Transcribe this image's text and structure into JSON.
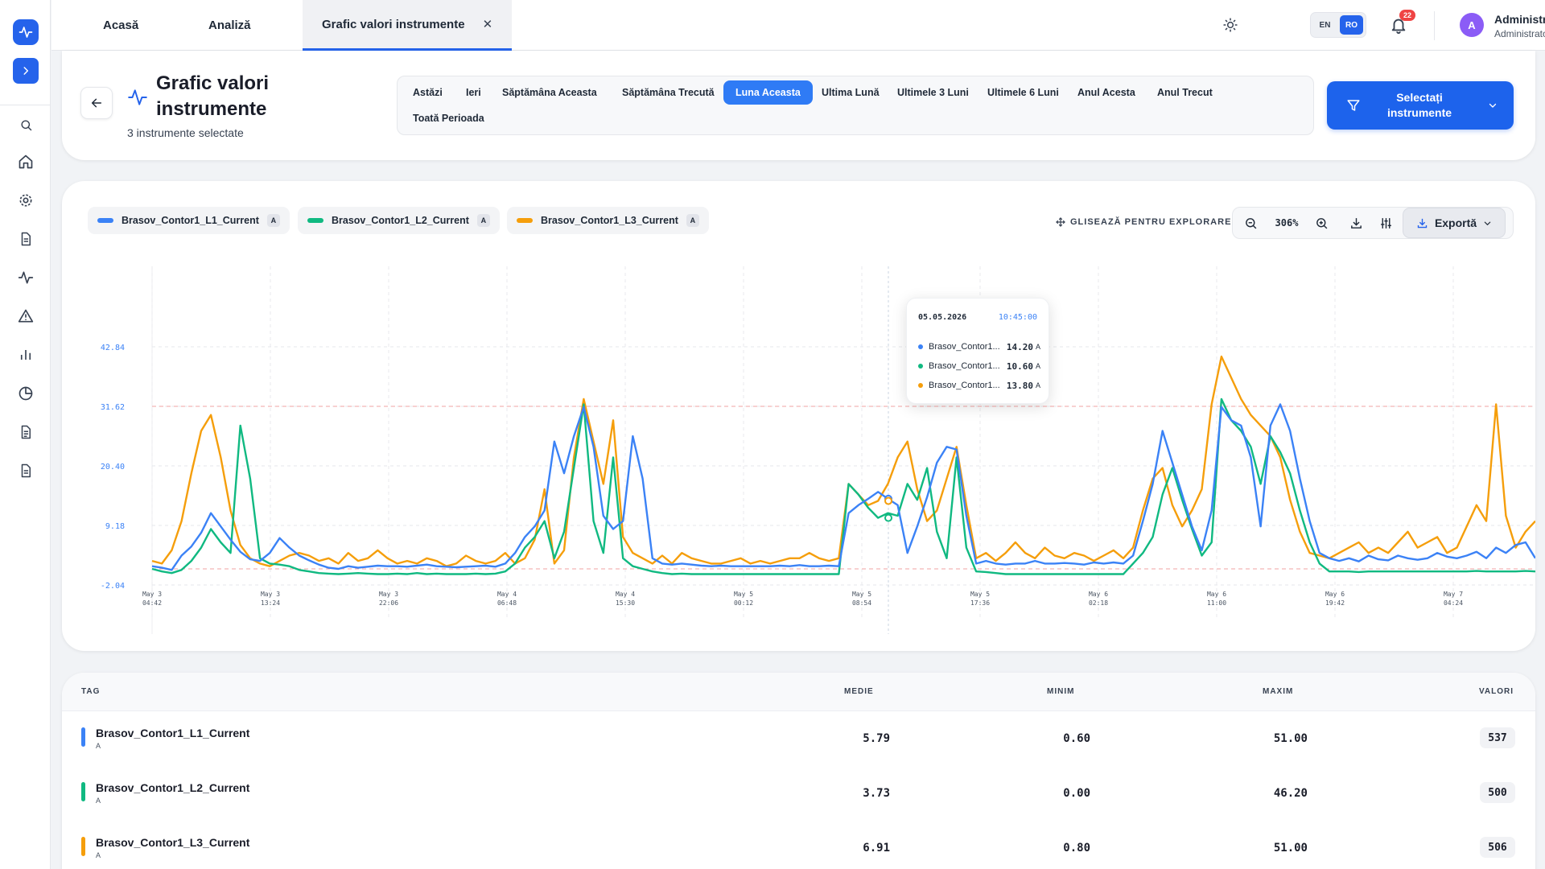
{
  "sidebar": {
    "icons": [
      "pulse-icon",
      "chevron-right-icon",
      "search-icon",
      "home-icon",
      "gear-icon",
      "document-icon",
      "activity-icon",
      "alert-triangle-icon",
      "bar-chart-icon",
      "pie-chart-icon",
      "file-text-icon",
      "report-icon"
    ]
  },
  "topbar": {
    "tabs": [
      {
        "label": "Acasă"
      },
      {
        "label": "Analiză"
      },
      {
        "label": "Grafic valori instrumente",
        "close": "✕"
      }
    ],
    "lang": {
      "en": "EN",
      "ro": "RO",
      "active": "RO"
    },
    "notifications": "22",
    "user": {
      "initial": "A",
      "name": "Administrator",
      "role": "Administrator"
    }
  },
  "header": {
    "title": "Grafic valori instrumente",
    "subtitle": "3 instrumente selectate",
    "periods": [
      "Astăzi",
      "Ieri",
      "Săptămâna Aceasta",
      "Săptămâna Trecută",
      "Luna Aceasta",
      "Ultima Lună",
      "Ultimele 3 Luni",
      "Ultimele 6 Luni",
      "Anul Acesta",
      "Anul Trecut",
      "Toată Perioada"
    ],
    "active_period": "Luna Aceasta",
    "select_button": "Selectați instrumente"
  },
  "chart_panel": {
    "explore_hint": "GLISEAZĂ PENTRU EXPLORARE",
    "zoom": "306%",
    "export_label": "Exportă",
    "tooltip": {
      "date": "05.05.2026",
      "time": "10:45:00",
      "rows": [
        {
          "name": "Brasov_Contor1...",
          "value": "14.20",
          "unit": "A"
        },
        {
          "name": "Brasov_Contor1...",
          "value": "10.60",
          "unit": "A"
        },
        {
          "name": "Brasov_Contor1...",
          "value": "13.80",
          "unit": "A"
        }
      ]
    }
  },
  "chart_data": {
    "type": "line",
    "ylim": [
      -2.04,
      42.84
    ],
    "y_ticks": [
      "42.84",
      "31.62",
      "20.40",
      "9.18",
      "-2.04"
    ],
    "x_ticks": [
      {
        "date": "May 3",
        "time": "04:42"
      },
      {
        "date": "May 3",
        "time": "13:24"
      },
      {
        "date": "May 3",
        "time": "22:06"
      },
      {
        "date": "May 4",
        "time": "06:48"
      },
      {
        "date": "May 4",
        "time": "15:30"
      },
      {
        "date": "May 5",
        "time": "00:12"
      },
      {
        "date": "May 5",
        "time": "08:54"
      },
      {
        "date": "May 5",
        "time": "17:36"
      },
      {
        "date": "May 6",
        "time": "02:18"
      },
      {
        "date": "May 6",
        "time": "11:00"
      },
      {
        "date": "May 6",
        "time": "19:42"
      },
      {
        "date": "May 7",
        "time": "04:24"
      }
    ],
    "reference_lines": [
      31.62,
      1.0
    ],
    "series": [
      {
        "name": "Brasov_Contor1_L1_Current",
        "unit": "A",
        "color": "#3b82f6",
        "values": [
          1.5,
          1.2,
          0.8,
          3.5,
          5.2,
          7.8,
          11.5,
          9.0,
          6.5,
          4.2,
          2.8,
          2.5,
          4.0,
          6.8,
          5.0,
          3.5,
          2.6,
          1.8,
          1.2,
          1.0,
          1.5,
          1.2,
          1.4,
          1.6,
          1.5,
          1.5,
          1.4,
          1.6,
          1.8,
          1.5,
          1.4,
          1.3,
          1.4,
          1.5,
          1.6,
          1.4,
          2.0,
          4.0,
          7.0,
          9.0,
          12.0,
          25.0,
          19.0,
          26.0,
          31.5,
          24.0,
          11.0,
          8.5,
          10.0,
          26.0,
          18.0,
          3.0,
          2.0,
          1.8,
          2.0,
          1.8,
          1.6,
          1.5,
          1.6,
          1.5,
          1.5,
          1.5,
          1.5,
          1.5,
          1.6,
          1.5,
          1.7,
          1.5,
          1.5,
          1.6,
          1.5,
          11.5,
          13.0,
          14.2,
          15.5,
          14.2,
          13.0,
          4.0,
          9.0,
          14.5,
          21.0,
          24.0,
          23.5,
          11.0,
          2.0,
          2.5,
          2.0,
          1.8,
          2.0,
          2.0,
          2.5,
          2.0,
          2.0,
          2.1,
          2.0,
          1.8,
          2.2,
          2.0,
          2.2,
          2.0,
          3.5,
          10.0,
          17.0,
          27.0,
          21.0,
          15.0,
          9.0,
          4.5,
          12.0,
          31.5,
          29.0,
          28.0,
          22.0,
          9.0,
          28.0,
          32.0,
          27.0,
          18.0,
          10.0,
          4.0,
          3.0,
          2.5,
          3.0,
          2.4,
          3.5,
          2.8,
          2.6,
          3.5,
          3.0,
          2.7,
          3.0,
          4.0,
          3.3,
          3.0,
          3.5,
          4.2,
          3.0,
          5.0,
          4.0,
          5.5,
          6.0,
          3.0
        ]
      },
      {
        "name": "Brasov_Contor1_L2_Current",
        "unit": "A",
        "color": "#10b981",
        "values": [
          1.0,
          0.5,
          0.2,
          0.8,
          2.5,
          5.0,
          8.5,
          6.0,
          4.0,
          28.0,
          18.0,
          3.0,
          2.0,
          1.8,
          1.5,
          0.8,
          0.5,
          0.2,
          0.1,
          0.0,
          0.1,
          0.2,
          0.1,
          0.0,
          0.0,
          0.1,
          0.0,
          0.2,
          0.0,
          0.1,
          0.0,
          0.0,
          0.0,
          0.1,
          0.0,
          0.1,
          0.5,
          2.0,
          5.0,
          7.0,
          10.0,
          3.0,
          8.0,
          20.0,
          32.0,
          10.0,
          4.0,
          22.0,
          3.0,
          1.5,
          1.0,
          0.5,
          0.2,
          0.0,
          0.1,
          0.0,
          0.0,
          0.0,
          0.0,
          0.0,
          0.0,
          0.0,
          0.0,
          0.0,
          0.0,
          0.0,
          0.0,
          0.0,
          0.0,
          0.0,
          0.0,
          17.0,
          15.0,
          12.5,
          10.6,
          11.5,
          11.0,
          17.0,
          14.0,
          20.0,
          8.0,
          3.0,
          22.0,
          5.0,
          0.5,
          0.4,
          0.2,
          0.0,
          0.0,
          0.0,
          0.0,
          0.0,
          0.0,
          0.0,
          0.0,
          0.0,
          0.0,
          0.0,
          0.0,
          0.0,
          2.0,
          4.0,
          7.0,
          15.0,
          20.0,
          14.0,
          8.5,
          3.5,
          6.0,
          33.0,
          29.0,
          27.0,
          24.0,
          17.0,
          26.0,
          23.0,
          19.0,
          12.0,
          6.0,
          2.0,
          0.5,
          0.5,
          0.5,
          0.4,
          0.5,
          0.5,
          0.5,
          0.5,
          0.5,
          0.5,
          0.5,
          0.5,
          0.5,
          0.5,
          0.5,
          0.6,
          0.5,
          0.5,
          0.5,
          0.5,
          0.6,
          0.5
        ]
      },
      {
        "name": "Brasov_Contor1_L3_Current",
        "unit": "A",
        "color": "#f59e0b",
        "values": [
          2.5,
          2.0,
          4.5,
          10.0,
          19.0,
          27.0,
          30.0,
          22.0,
          12.0,
          5.5,
          3.0,
          2.0,
          1.5,
          2.5,
          3.5,
          4.0,
          3.5,
          2.5,
          3.0,
          2.0,
          4.0,
          2.5,
          3.0,
          4.5,
          3.0,
          2.0,
          2.5,
          2.0,
          3.0,
          2.5,
          1.5,
          2.0,
          3.5,
          2.5,
          2.0,
          2.5,
          4.0,
          2.0,
          3.0,
          6.5,
          16.0,
          2.0,
          4.5,
          22.0,
          33.0,
          25.0,
          17.0,
          29.0,
          7.0,
          4.0,
          3.0,
          2.0,
          3.5,
          2.0,
          4.0,
          3.0,
          2.5,
          2.0,
          2.0,
          2.5,
          3.0,
          2.0,
          2.5,
          2.0,
          2.5,
          3.0,
          3.0,
          4.0,
          3.0,
          2.5,
          3.0,
          17.0,
          15.0,
          13.0,
          13.8,
          17.0,
          22.0,
          25.0,
          16.0,
          10.0,
          12.0,
          18.0,
          24.0,
          13.0,
          3.0,
          4.0,
          2.5,
          4.0,
          6.0,
          4.0,
          3.0,
          5.0,
          3.5,
          3.0,
          4.0,
          3.5,
          2.5,
          3.5,
          4.5,
          3.0,
          5.0,
          12.0,
          18.0,
          20.0,
          13.0,
          9.0,
          12.0,
          16.0,
          32.0,
          41.0,
          37.0,
          33.0,
          30.0,
          28.0,
          26.0,
          22.0,
          14.0,
          8.0,
          4.0,
          3.5,
          3.0,
          4.0,
          5.0,
          6.0,
          4.0,
          5.0,
          4.0,
          6.0,
          8.0,
          5.0,
          6.0,
          7.0,
          4.0,
          5.0,
          9.0,
          13.0,
          10.0,
          32.0,
          11.0,
          5.0,
          8.0,
          10.0
        ]
      }
    ]
  },
  "table": {
    "headers": {
      "tag": "TAG",
      "avg": "MEDIE",
      "min": "MINIM",
      "max": "MAXIM",
      "count": "VALORI"
    },
    "rows": [
      {
        "tag": "Brasov_Contor1_L1_Current",
        "unit": "A",
        "avg": "5.79",
        "min": "0.60",
        "max": "51.00",
        "count": "537",
        "color": "#3b82f6"
      },
      {
        "tag": "Brasov_Contor1_L2_Current",
        "unit": "A",
        "avg": "3.73",
        "min": "0.00",
        "max": "46.20",
        "count": "500",
        "color": "#10b981"
      },
      {
        "tag": "Brasov_Contor1_L3_Current",
        "unit": "A",
        "avg": "6.91",
        "min": "0.80",
        "max": "51.00",
        "count": "506",
        "color": "#f59e0b"
      }
    ]
  }
}
